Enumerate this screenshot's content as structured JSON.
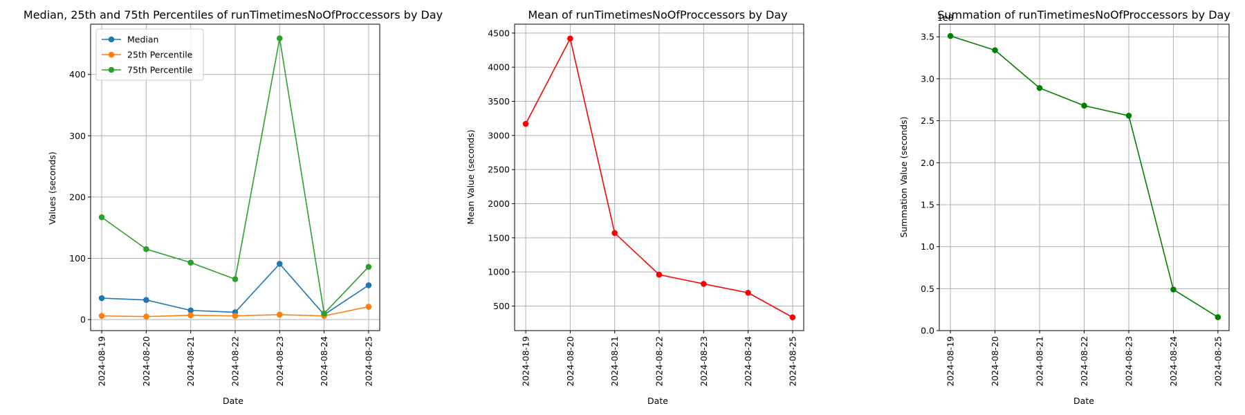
{
  "chart_data": [
    {
      "type": "line",
      "title": "Median, 25th and 75th Percentiles of runTimetimesNoOfProccessors by Day",
      "xlabel": "Date",
      "ylabel": "Values (seconds)",
      "categories": [
        "2024-08-19",
        "2024-08-20",
        "2024-08-21",
        "2024-08-22",
        "2024-08-23",
        "2024-08-24",
        "2024-08-25"
      ],
      "ylim": [
        -18,
        482
      ],
      "yticks": [
        0,
        100,
        200,
        300,
        400
      ],
      "ytick_labels": [
        "0",
        "100",
        "200",
        "300",
        "400"
      ],
      "grid": true,
      "legend": "upper-left",
      "series": [
        {
          "name": "Median",
          "color": "#1f77b4",
          "values": [
            35,
            32,
            15,
            12,
            91,
            8,
            56
          ]
        },
        {
          "name": "25th Percentile",
          "color": "#ff7f0e",
          "values": [
            6,
            5,
            7,
            6,
            8,
            6,
            21
          ]
        },
        {
          "name": "75th Percentile",
          "color": "#2ca02c",
          "values": [
            167,
            115,
            93,
            66,
            459,
            10,
            86
          ]
        }
      ]
    },
    {
      "type": "line",
      "title": "Mean of runTimetimesNoOfProccessors by Day",
      "xlabel": "Date",
      "ylabel": "Mean Value (seconds)",
      "categories": [
        "2024-08-19",
        "2024-08-20",
        "2024-08-21",
        "2024-08-22",
        "2024-08-23",
        "2024-08-24",
        "2024-08-25"
      ],
      "ylim": [
        140,
        4630
      ],
      "yticks": [
        500,
        1000,
        1500,
        2000,
        2500,
        3000,
        3500,
        4000,
        4500
      ],
      "ytick_labels": [
        "500",
        "1000",
        "1500",
        "2000",
        "2500",
        "3000",
        "3500",
        "4000",
        "4500"
      ],
      "grid": true,
      "series": [
        {
          "color": "#ff0000",
          "values": [
            3170,
            4420,
            1570,
            960,
            825,
            695,
            335
          ]
        }
      ]
    },
    {
      "type": "line",
      "title": "Summation of runTimetimesNoOfProccessors by Day",
      "xlabel": "Date",
      "ylabel": "Summation Value (seconds)",
      "offset_text": "1e8",
      "categories": [
        "2024-08-19",
        "2024-08-20",
        "2024-08-21",
        "2024-08-22",
        "2024-08-23",
        "2024-08-24",
        "2024-08-25"
      ],
      "ylim": [
        0,
        3.65
      ],
      "yticks": [
        0,
        0.5,
        1.0,
        1.5,
        2.0,
        2.5,
        3.0,
        3.5
      ],
      "ytick_labels": [
        "0.0",
        "0.5",
        "1.0",
        "1.5",
        "2.0",
        "2.5",
        "3.0",
        "3.5"
      ],
      "grid": true,
      "series": [
        {
          "color": "#008000",
          "values": [
            3.51,
            3.34,
            2.89,
            2.68,
            2.56,
            0.49,
            0.16
          ]
        }
      ]
    }
  ]
}
